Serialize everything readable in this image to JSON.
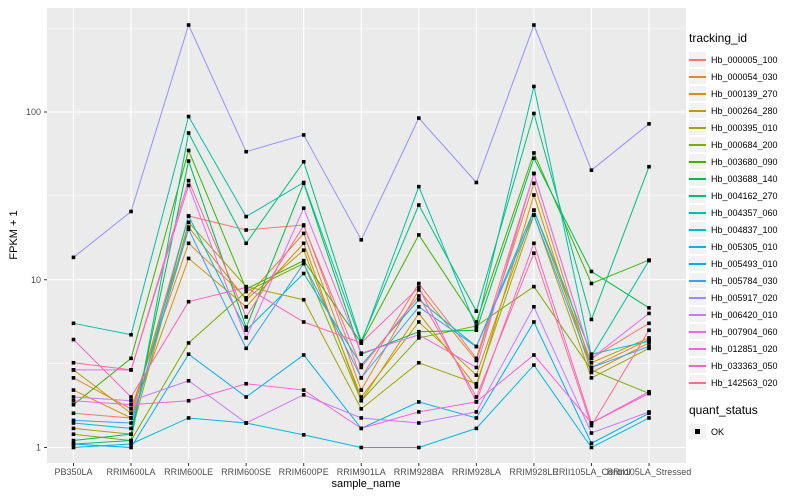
{
  "figure": {
    "xlabel": "sample_name",
    "ylabel": "FPKM + 1",
    "tracking_legend_title": "tracking_id",
    "quant_legend_title": "quant_status",
    "quant_status_label": "OK"
  },
  "colors": {
    "panel_bg": "#EBEBEB",
    "grid": "#FFFFFF",
    "marker": "#000000",
    "tick": "#333333",
    "tick_label": "#4D4D4D",
    "legend_key_bg": "#F2F2F2"
  },
  "chart_data": {
    "type": "line",
    "title": "",
    "xlabel": "sample_name",
    "ylabel": "FPKM + 1",
    "x_categories": [
      "PB350LA",
      "RRIM600LA",
      "RRIM600LE",
      "RRIM600SE",
      "RRIM600PE",
      "RRIM901LA",
      "RRIM928BA",
      "RRIM928LA",
      "RRIM928LE",
      "RRII105LA_Control",
      "RRII105LA_Stressed"
    ],
    "y_scale": "log10",
    "y_ticks": [
      1,
      10,
      100
    ],
    "y_minor_ticks": [
      3.162,
      31.62,
      316.2
    ],
    "ylim": [
      0.81,
      410
    ],
    "grid": true,
    "legend_position": "right",
    "marker_shape": "filled-square",
    "marker_legend": {
      "title": "quant_status",
      "entries": [
        {
          "label": "OK",
          "shape": "filled-square",
          "color": "#000000"
        }
      ]
    },
    "series": [
      {
        "name": "Hb_000005_100",
        "color": "#F8766D",
        "values": [
          1.6,
          1.5,
          24,
          19.8,
          21.2,
          2.6,
          9.5,
          3.4,
          43,
          3.4,
          5.5
        ]
      },
      {
        "name": "Hb_000054_030",
        "color": "#E88526",
        "values": [
          2.6,
          1.7,
          16.5,
          7.8,
          18.9,
          2.2,
          8.7,
          3.3,
          37.6,
          3.0,
          4.4
        ]
      },
      {
        "name": "Hb_000139_270",
        "color": "#D89000",
        "values": [
          2.2,
          1.5,
          13.4,
          6.9,
          16.5,
          1.9,
          6.3,
          2.3,
          32,
          2.8,
          4.2
        ]
      },
      {
        "name": "Hb_000264_280",
        "color": "#C09B00",
        "values": [
          2.9,
          1.6,
          20.6,
          7.6,
          15,
          2.0,
          5.6,
          2.7,
          26,
          3.2,
          4.5
        ]
      },
      {
        "name": "Hb_000395_010",
        "color": "#A3A500",
        "values": [
          1.3,
          1.2,
          22,
          9.1,
          7.6,
          1.7,
          3.2,
          2.4,
          24.3,
          2.6,
          3.9
        ]
      },
      {
        "name": "Hb_000684_200",
        "color": "#7CAE00",
        "values": [
          1.2,
          1.1,
          4.2,
          8.5,
          12.5,
          1.9,
          4.5,
          5.3,
          9.1,
          2.9,
          2.1
        ]
      },
      {
        "name": "Hb_003680_090",
        "color": "#39B600",
        "values": [
          1.8,
          3.4,
          59,
          8.8,
          13,
          4.2,
          18.5,
          5.6,
          57,
          9.5,
          13.1
        ]
      },
      {
        "name": "Hb_003688_140",
        "color": "#00BB4E",
        "values": [
          1.1,
          1.2,
          51,
          5.2,
          37.6,
          3.6,
          4.9,
          5.0,
          53,
          11.2,
          6.8
        ]
      },
      {
        "name": "Hb_004162_270",
        "color": "#00BF7D",
        "values": [
          1.05,
          1.1,
          75,
          16.5,
          50.5,
          4.3,
          27.9,
          6.5,
          98,
          5.8,
          47.2
        ]
      },
      {
        "name": "Hb_004357_060",
        "color": "#00C1A3",
        "values": [
          5.5,
          4.7,
          94,
          23.8,
          38,
          4.2,
          35.9,
          5.2,
          142,
          3.5,
          13
        ]
      },
      {
        "name": "Hb_004837_100",
        "color": "#00BFC4",
        "values": [
          1.4,
          1.3,
          24,
          5.0,
          10.9,
          3.1,
          7.6,
          4.0,
          26,
          3.6,
          4.3
        ]
      },
      {
        "name": "Hb_005305_010",
        "color": "#00BAE0",
        "values": [
          1.0,
          1.05,
          1.5,
          1.4,
          1.19,
          1.0,
          1.0,
          1.3,
          3.1,
          1.0,
          1.5
        ]
      },
      {
        "name": "Hb_005493_010",
        "color": "#00B0F6",
        "values": [
          1.05,
          1.0,
          3.6,
          2.0,
          3.56,
          1.3,
          1.87,
          1.5,
          5.6,
          1.06,
          1.6
        ]
      },
      {
        "name": "Hb_005784_030",
        "color": "#35A2FF",
        "values": [
          1.45,
          1.4,
          20,
          3.9,
          12.5,
          2.6,
          6.9,
          3.99,
          24.3,
          3.0,
          4.0
        ]
      },
      {
        "name": "Hb_005917_020",
        "color": "#9590FF",
        "values": [
          13.6,
          25.5,
          330,
          58,
          73,
          17.3,
          92,
          38,
          330,
          45,
          85
        ]
      },
      {
        "name": "Hb_006420_010",
        "color": "#C77CFF",
        "values": [
          2.0,
          1.9,
          2.5,
          1.4,
          2.06,
          1.5,
          1.4,
          1.63,
          6.9,
          1.22,
          1.63
        ]
      },
      {
        "name": "Hb_007904_060",
        "color": "#E76BF3",
        "values": [
          2.9,
          2.9,
          36.5,
          4.5,
          26.7,
          3.65,
          4.7,
          3.0,
          43,
          3.4,
          6.3
        ]
      },
      {
        "name": "Hb_012851_020",
        "color": "#FA62DB",
        "values": [
          1.9,
          1.8,
          1.9,
          2.4,
          2.2,
          1.3,
          1.63,
          1.87,
          3.56,
          1.4,
          2.15
        ]
      },
      {
        "name": "Hb_033363_050",
        "color": "#FF62BC",
        "values": [
          4.4,
          2.0,
          7.4,
          9.0,
          5.6,
          4.2,
          9.0,
          1.87,
          16.5,
          1.4,
          2.1
        ]
      },
      {
        "name": "Hb_142563_020",
        "color": "#FF6A98",
        "values": [
          3.2,
          2.9,
          39,
          6.0,
          21,
          3.0,
          8.0,
          2.0,
          14.4,
          1.35,
          5.0
        ]
      }
    ]
  }
}
